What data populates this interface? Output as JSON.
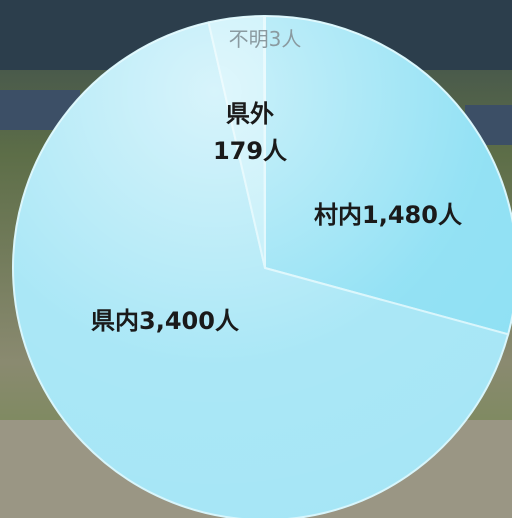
{
  "chart_data": {
    "type": "pie",
    "categories": [
      "村内",
      "県内",
      "県外",
      "不明"
    ],
    "values": [
      1480,
      3400,
      179,
      3
    ],
    "value_labels": [
      "1,480人",
      "3,400人",
      "179人",
      "3人"
    ],
    "colors": [
      "#8ee0f4",
      "#a6e6f6",
      "#b8ecf8",
      "#c8f0fa"
    ]
  }
}
